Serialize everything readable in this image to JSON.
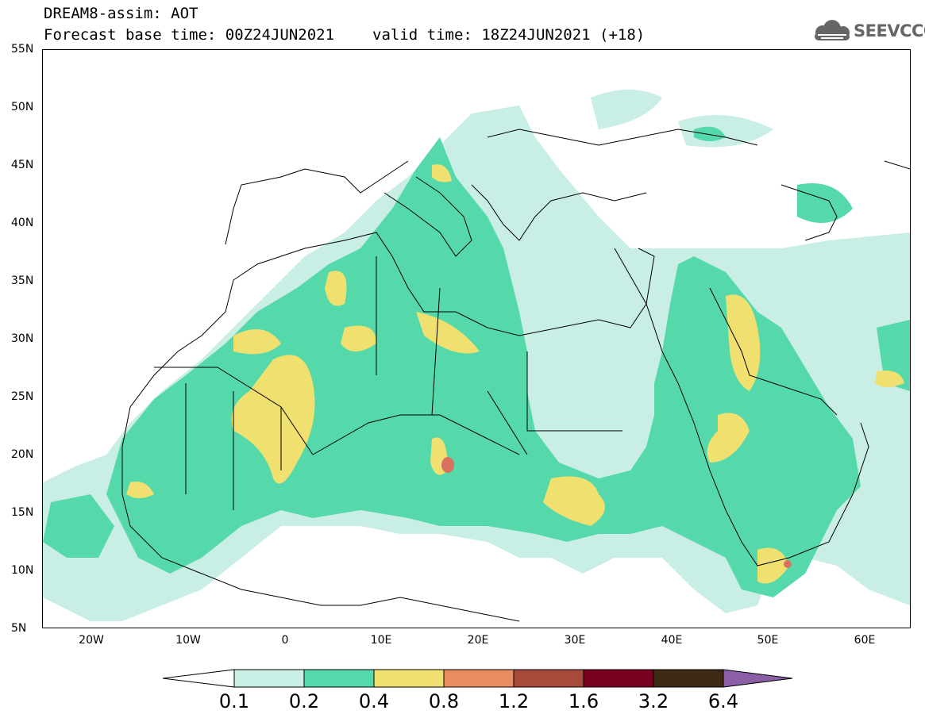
{
  "header": {
    "title_line1": "DREAM8-assim: AOT",
    "base_time": "Forecast base time: 00Z24JUN2021",
    "valid_time": "valid time: 18Z24JUN2021 (+18)"
  },
  "logo": {
    "text": "SEEVCCC",
    "icon": "cloud-icon"
  },
  "map": {
    "lat_labels": [
      "55N",
      "50N",
      "45N",
      "40N",
      "35N",
      "30N",
      "25N",
      "20N",
      "15N",
      "10N",
      "5N"
    ],
    "lon_labels": [
      "20W",
      "10W",
      "0",
      "10E",
      "20E",
      "30E",
      "40E",
      "50E",
      "60E"
    ],
    "colors": {
      "c01": "#c8eee6",
      "c02": "#55d9ab",
      "c04": "#f0e070",
      "c08": "#e98c60",
      "c12": "#d97060"
    }
  },
  "colorbar": {
    "labels": [
      "0.1",
      "0.2",
      "0.4",
      "0.8",
      "1.2",
      "1.6",
      "3.2",
      "6.4"
    ],
    "colors": [
      "#c8eee6",
      "#55d9ab",
      "#f0e070",
      "#e98c60",
      "#a84a3a",
      "#7a0022",
      "#3e2a14",
      "#8a5fa6"
    ]
  }
}
